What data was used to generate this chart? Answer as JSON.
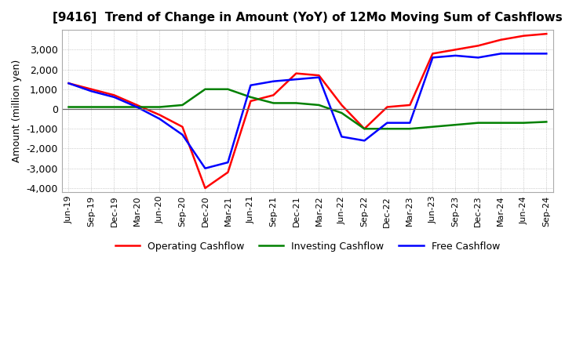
{
  "title": "[9416]  Trend of Change in Amount (YoY) of 12Mo Moving Sum of Cashflows",
  "ylabel": "Amount (million yen)",
  "x_labels": [
    "Jun-19",
    "Sep-19",
    "Dec-19",
    "Mar-20",
    "Jun-20",
    "Sep-20",
    "Dec-20",
    "Mar-21",
    "Jun-21",
    "Sep-21",
    "Dec-21",
    "Mar-22",
    "Jun-22",
    "Sep-22",
    "Dec-22",
    "Mar-23",
    "Jun-23",
    "Sep-23",
    "Dec-23",
    "Mar-24",
    "Jun-24",
    "Sep-24"
  ],
  "operating": [
    1300,
    1000,
    700,
    200,
    -300,
    -900,
    -4000,
    -3200,
    400,
    700,
    1800,
    1700,
    200,
    -1000,
    100,
    200,
    2800,
    3000,
    3200,
    3500,
    3700,
    3800
  ],
  "investing": [
    100,
    100,
    100,
    100,
    100,
    200,
    1000,
    1000,
    600,
    300,
    300,
    200,
    -200,
    -1000,
    -1000,
    -1000,
    -900,
    -800,
    -700,
    -700,
    -700,
    -650
  ],
  "free": [
    1300,
    900,
    600,
    100,
    -500,
    -1300,
    -3000,
    -2700,
    1200,
    1400,
    1500,
    1600,
    -1400,
    -1600,
    -700,
    -700,
    2600,
    2700,
    2600,
    2800,
    2800,
    2800
  ],
  "ylim": [
    -4200,
    4000
  ],
  "yticks": [
    -4000,
    -3000,
    -2000,
    -1000,
    0,
    1000,
    2000,
    3000
  ],
  "colors": {
    "operating": "#ff0000",
    "investing": "#008000",
    "free": "#0000ff"
  },
  "legend_labels": [
    "Operating Cashflow",
    "Investing Cashflow",
    "Free Cashflow"
  ],
  "bg_color": "#ffffff",
  "grid_color": "#aaaaaa",
  "title_fontsize": 11,
  "linewidth": 1.8
}
